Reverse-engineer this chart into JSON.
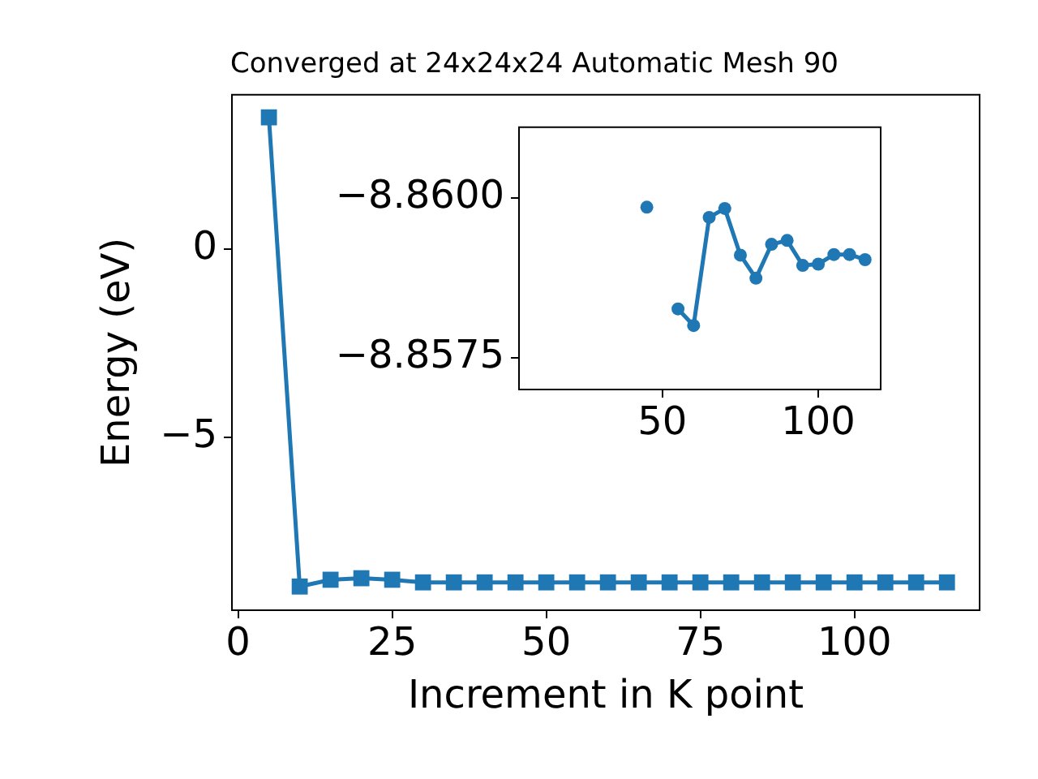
{
  "chart_data": [
    {
      "type": "line",
      "title": "Converged at 24x24x24 Automatic Mesh 90",
      "xlabel": "Increment in K point",
      "ylabel": "Energy (eV)",
      "x": [
        5,
        10,
        15,
        20,
        25,
        30,
        35,
        40,
        45,
        50,
        55,
        60,
        65,
        70,
        75,
        80,
        85,
        90,
        95,
        100,
        105,
        110,
        115
      ],
      "values": [
        3.5,
        -8.97,
        -8.79,
        -8.75,
        -8.79,
        -8.86,
        -8.86,
        -8.86,
        -8.86,
        -8.86,
        -8.86,
        -8.86,
        -8.86,
        -8.86,
        -8.86,
        -8.86,
        -8.86,
        -8.86,
        -8.86,
        -8.86,
        -8.86,
        -8.86,
        -8.86
      ],
      "color": "#1f77b4",
      "marker": "square",
      "line_style": "solid",
      "xlim": [
        -1,
        120.3
      ],
      "xticks": [
        0,
        25,
        50,
        75,
        100
      ],
      "ylim": [
        -9.6,
        4.1
      ],
      "yticks": [
        {
          "value": -5,
          "label": "−5"
        },
        {
          "value": 0,
          "label": "0"
        }
      ]
    },
    {
      "type": "line",
      "x": [
        45,
        50,
        55,
        60,
        65,
        70,
        75,
        80,
        85,
        90,
        95,
        100,
        105,
        110,
        115
      ],
      "values": [
        -8.85985,
        null,
        -8.85826,
        -8.858,
        -8.85969,
        -8.85983,
        -8.8591,
        -8.85874,
        -8.85927,
        -8.85933,
        -8.85894,
        -8.85896,
        -8.85911,
        -8.85911,
        -8.85903
      ],
      "color": "#1f77b4",
      "marker": "circle",
      "line_style": "solid",
      "xlim": [
        4,
        120
      ],
      "xticks": [
        50,
        100
      ],
      "ylim": [
        -8.857,
        -8.8611
      ],
      "yticks": [
        {
          "value": -8.86,
          "label": "−8.8600"
        },
        {
          "value": -8.8575,
          "label": "−8.8575"
        }
      ]
    }
  ]
}
